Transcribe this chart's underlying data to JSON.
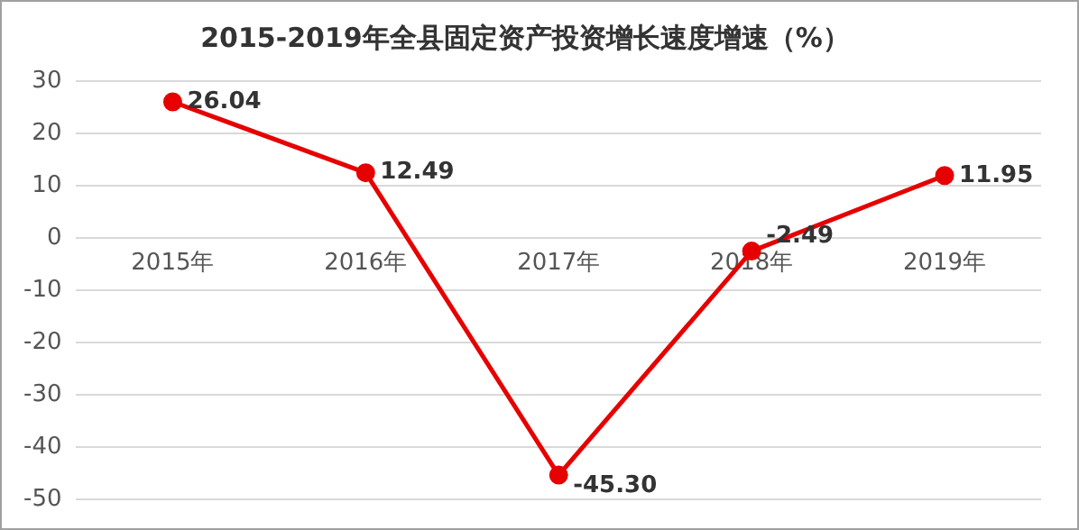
{
  "chart_data": {
    "type": "line",
    "title": "2015-2019年全县固定资产投资增长速度增速（%）",
    "categories": [
      "2015年",
      "2016年",
      "2017年",
      "2018年",
      "2019年"
    ],
    "series": [
      {
        "color": "#e60000",
        "values": [
          26.04,
          12.49,
          -45.3,
          -2.49,
          11.95
        ],
        "value_labels": [
          "26.04",
          "12.49",
          "-45.30",
          "-2.49",
          "11.95"
        ]
      }
    ],
    "ylim": [
      -50,
      30
    ],
    "yticks": [
      -50,
      -40,
      -30,
      -20,
      -10,
      0,
      10,
      20,
      30
    ],
    "grid": "y",
    "legend": false,
    "marker": "circle",
    "line_style": "solid"
  }
}
